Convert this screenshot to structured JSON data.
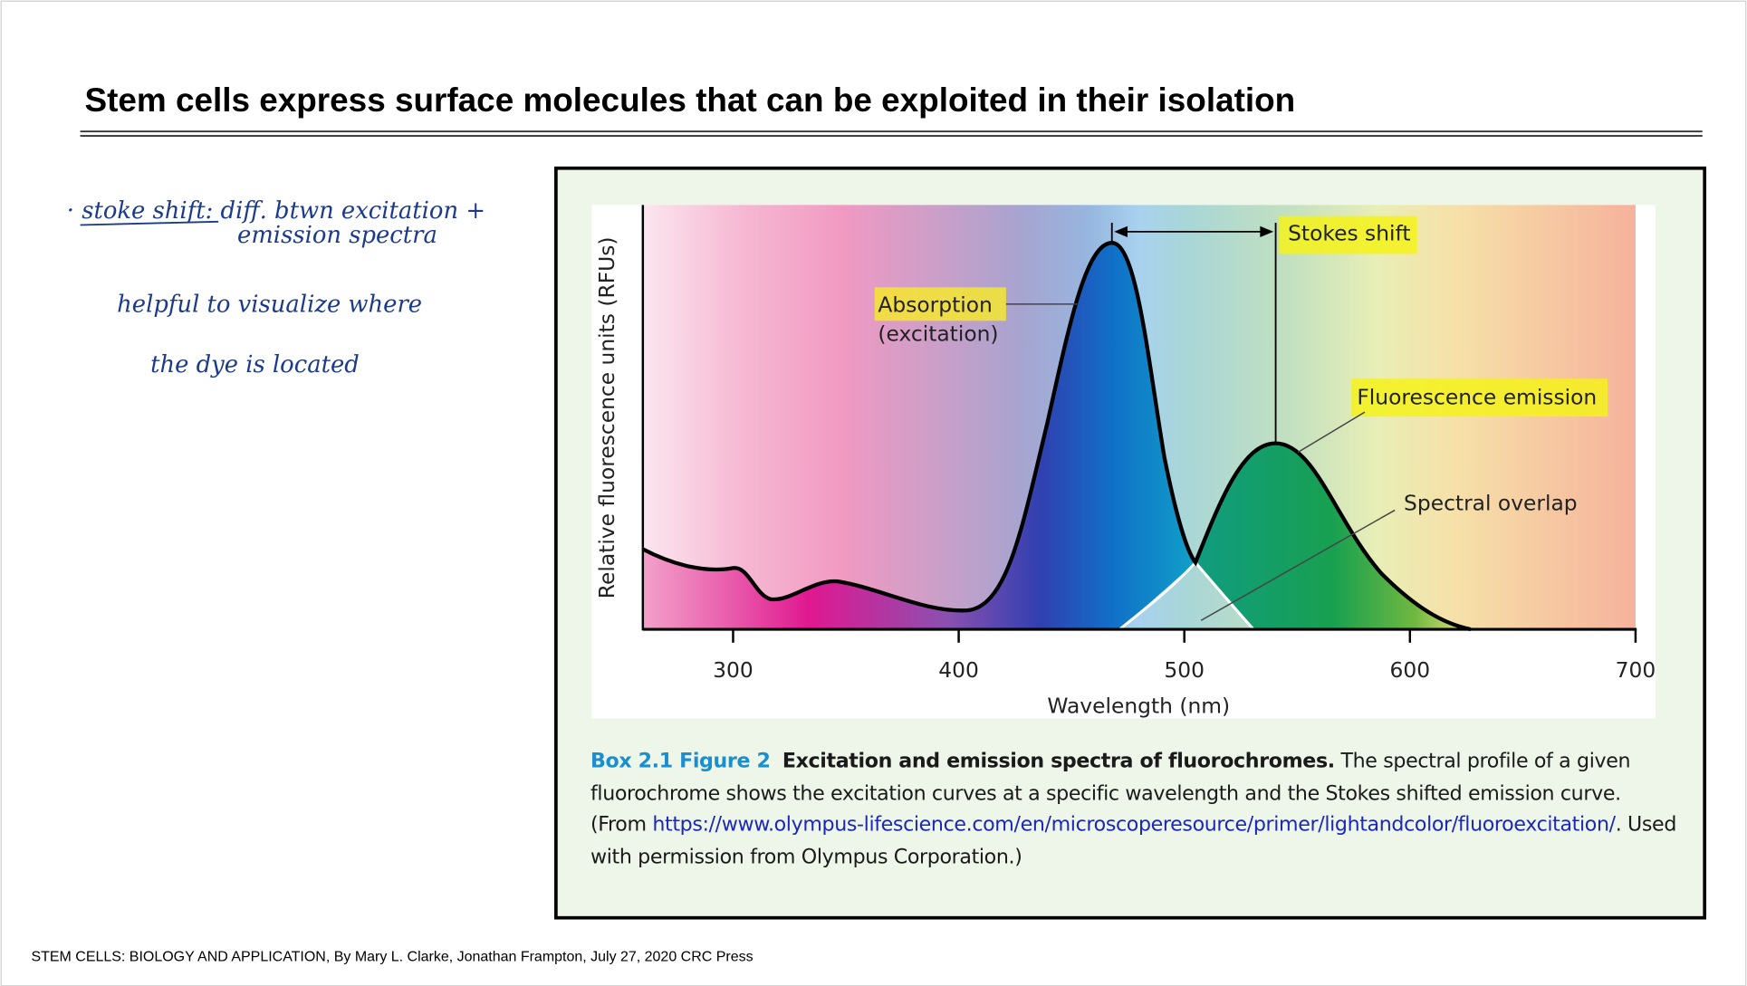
{
  "title": "Stem cells express surface molecules that can be exploited in their isolation",
  "notes": [
    "· stoke shift: diff. btwn excitation +",
    "emission spectra",
    "helpful to visualize where",
    "the dye is located"
  ],
  "figure": {
    "y_label": "Relative fluorescence units (RFUs)",
    "x_label": "Wavelength (nm)",
    "xlim": [
      260,
      700
    ],
    "xticks": [
      300,
      400,
      500,
      600,
      700
    ],
    "annotations": {
      "absorption": "Absorption",
      "excitation": "(excitation)",
      "stokes_shift": "Stokes shift",
      "emission": "Fluorescence emission",
      "overlap": "Spectral overlap"
    }
  },
  "caption": {
    "label": "Box 2.1 Figure 2",
    "heading": "Excitation and emission spectra of fluorochromes.",
    "text_before_link": "The spectral profile of a given fluorochrome shows the excitation curves at a specific wavelength and the Stokes shifted emission curve. (From",
    "link": "https://www.olympus-lifescience.com/en/microscoperesource/primer/lightandcolor/fluoroexcitation/",
    "text_after_link": ". Used with permission from Olympus Corporation.)"
  },
  "footer": "STEM CELLS: BIOLOGY AND APPLICATION, By Mary L. Clarke, Jonathan Frampton, July 27, 2020 CRC Press"
}
